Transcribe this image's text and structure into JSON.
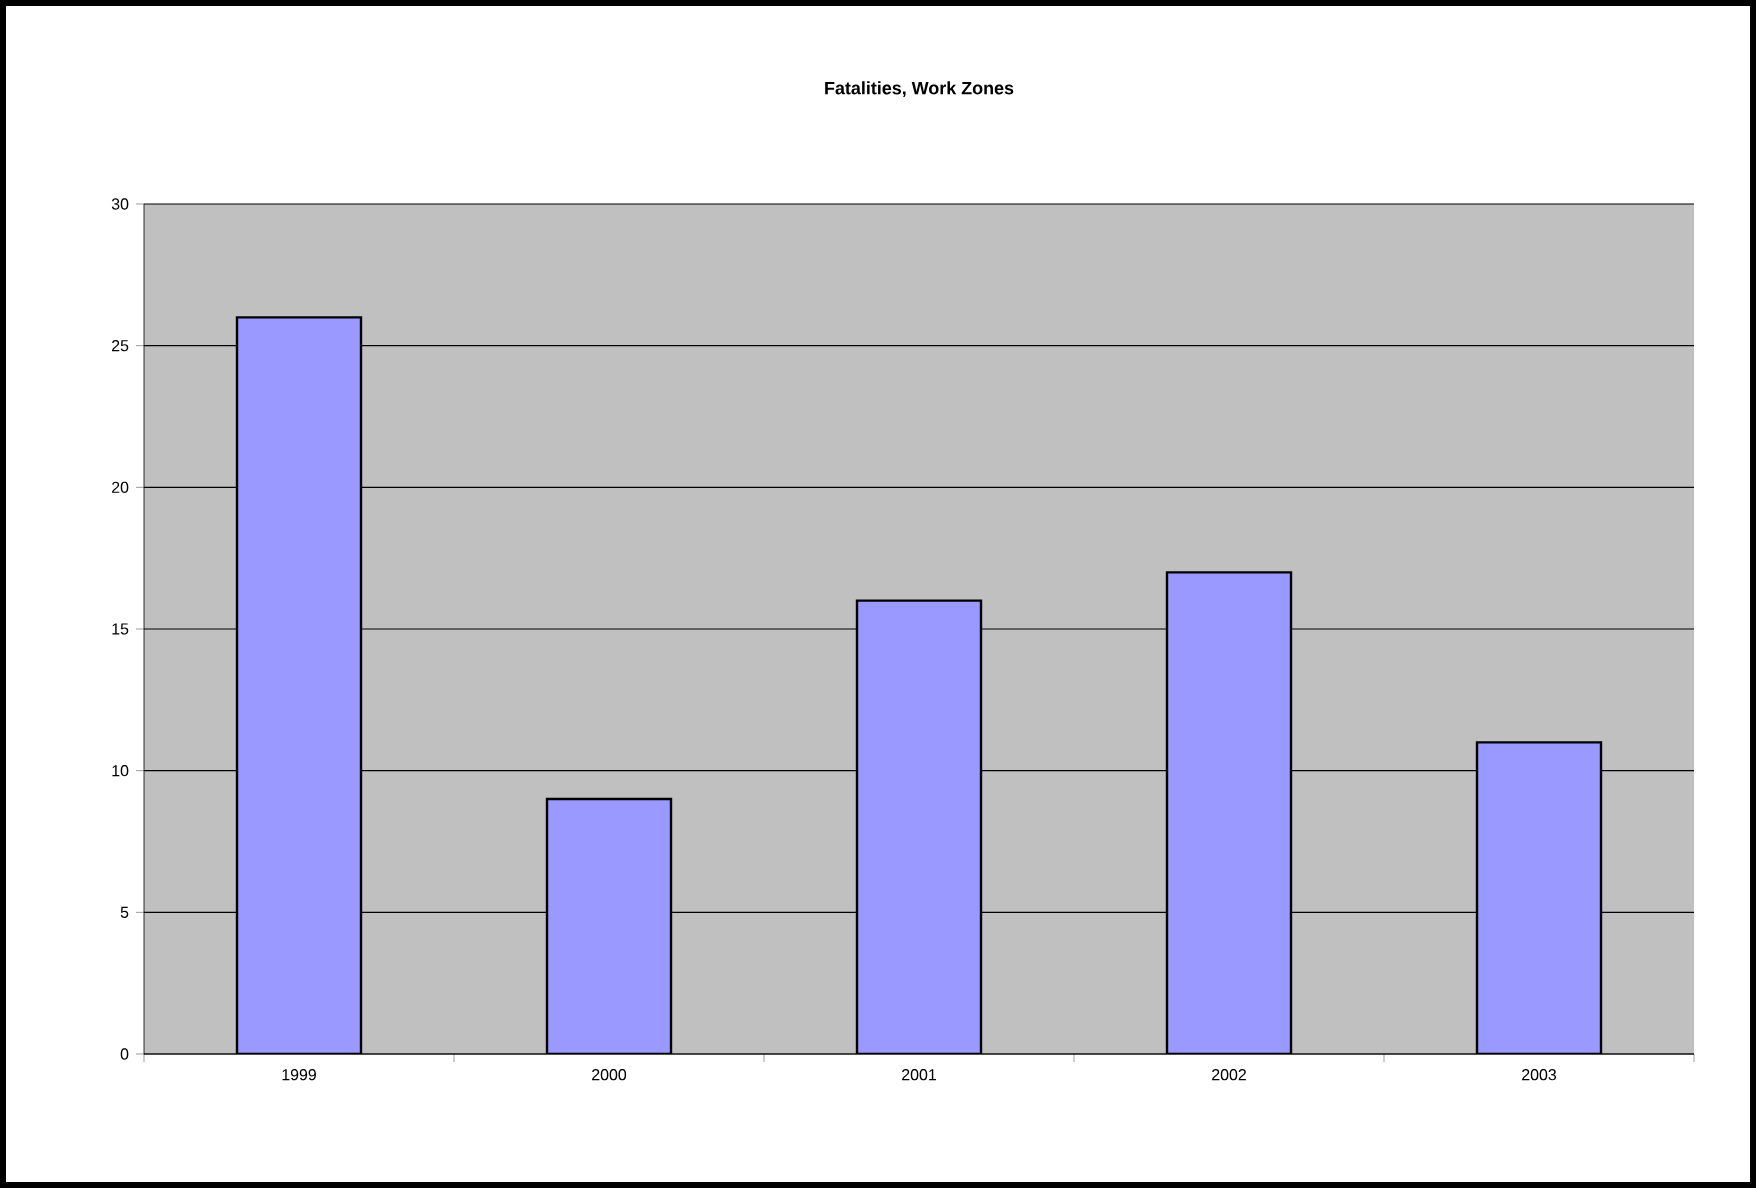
{
  "chart_data": {
    "type": "bar",
    "title": "Fatalities, Work Zones",
    "categories": [
      "1999",
      "2000",
      "2001",
      "2002",
      "2003"
    ],
    "values": [
      26,
      9,
      16,
      17,
      11
    ],
    "color": "#9999ff",
    "ylim": [
      0,
      30
    ],
    "yticks": [
      0,
      5,
      10,
      15,
      20,
      25,
      30
    ],
    "grid": "y"
  }
}
